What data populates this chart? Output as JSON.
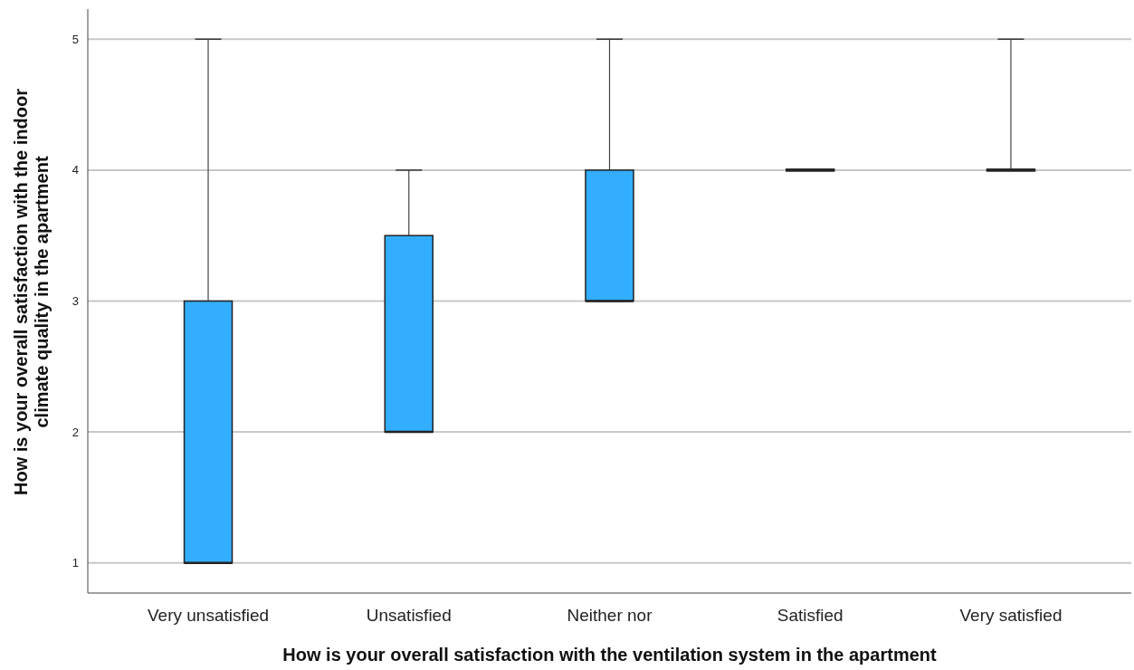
{
  "chart_data": {
    "type": "box",
    "categories": [
      "Very unsatisfied",
      "Unsatisfied",
      "Neither nor",
      "Satisfied",
      "Very satisfied"
    ],
    "boxes": [
      {
        "low": 1,
        "q1": 1,
        "median": 1,
        "q3": 3,
        "high": 5
      },
      {
        "low": 2,
        "q1": 2,
        "median": 2,
        "q3": 3.5,
        "high": 4
      },
      {
        "low": 3,
        "q1": 3,
        "median": 3,
        "q3": 4,
        "high": 5
      },
      {
        "low": 4,
        "q1": 4,
        "median": 4,
        "q3": 4,
        "high": 4
      },
      {
        "low": 4,
        "q1": 4,
        "median": 4,
        "q3": 4,
        "high": 5
      }
    ],
    "color": "#33adff",
    "xlabel": "How is your overall satisfaction with the ventilation system in the apartment",
    "ylabel": "How is your overall satisfaction with the indoor\nclimate quality in the apartment",
    "ylim": [
      0.77,
      5.23
    ],
    "yticks": [
      1,
      2,
      3,
      4,
      5
    ],
    "grid": "y"
  }
}
